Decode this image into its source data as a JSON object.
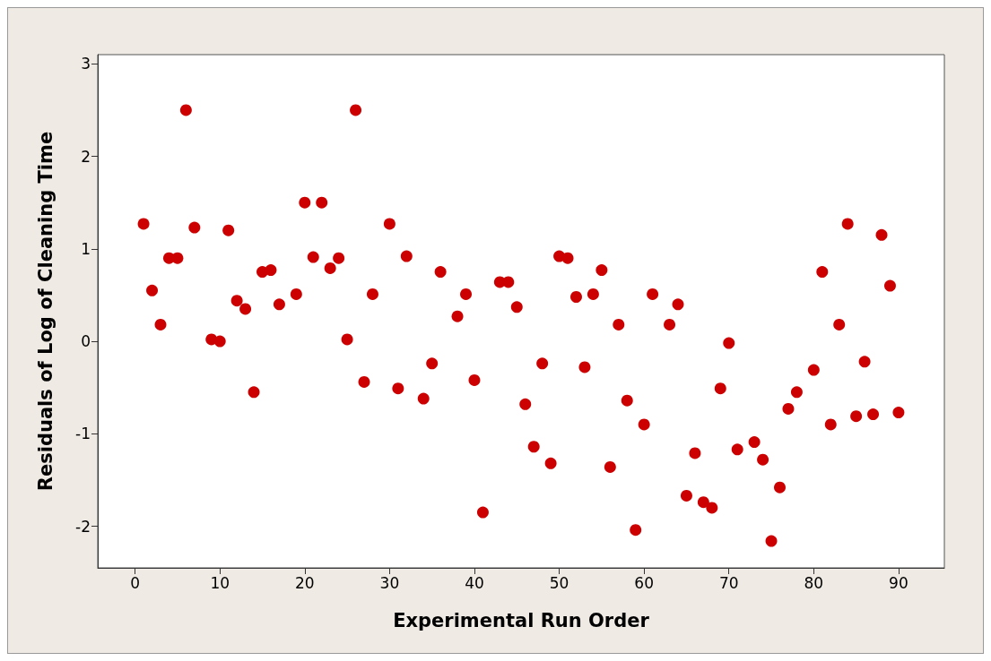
{
  "chart_data": {
    "type": "scatter",
    "xlabel": "Experimental Run Order",
    "ylabel": "Residuals of Log of Cleaning Time",
    "x": [
      1,
      2,
      3,
      4,
      5,
      6,
      7,
      9,
      10,
      11,
      12,
      13,
      14,
      15,
      16,
      17,
      19,
      20,
      21,
      22,
      23,
      24,
      25,
      26,
      27,
      28,
      30,
      31,
      32,
      34,
      35,
      36,
      38,
      39,
      40,
      41,
      43,
      44,
      45,
      46,
      47,
      48,
      49,
      50,
      51,
      52,
      53,
      54,
      55,
      56,
      57,
      58,
      59,
      60,
      61,
      63,
      64,
      65,
      66,
      67,
      68,
      69,
      70,
      71,
      73,
      74,
      75,
      76,
      77,
      78,
      80,
      81,
      82,
      83,
      84,
      85,
      86,
      87,
      88,
      89,
      90
    ],
    "values": [
      1.27,
      0.55,
      0.18,
      0.9,
      0.9,
      2.5,
      1.23,
      0.02,
      0.0,
      1.2,
      0.44,
      0.35,
      -0.55,
      0.75,
      0.77,
      0.4,
      0.51,
      1.5,
      0.91,
      1.5,
      0.79,
      0.9,
      0.02,
      2.5,
      -0.44,
      0.51,
      1.27,
      -0.51,
      0.92,
      -0.62,
      -0.24,
      0.75,
      0.27,
      0.51,
      -0.42,
      -1.85,
      0.64,
      0.64,
      0.37,
      -0.68,
      -1.14,
      -0.24,
      -1.32,
      0.92,
      0.9,
      0.48,
      -0.28,
      0.51,
      0.77,
      -1.36,
      0.18,
      -0.64,
      -2.04,
      -0.9,
      0.51,
      0.18,
      0.4,
      -1.67,
      -1.21,
      -1.74,
      -1.8,
      -0.51,
      -0.02,
      -1.17,
      -1.09,
      -1.28,
      -2.16,
      -1.58,
      -0.73,
      -0.55,
      -0.31,
      0.75,
      -0.9,
      0.18,
      1.27,
      -0.81,
      -0.22,
      -0.79,
      1.15,
      0.6,
      -0.77
    ],
    "color": "#cc0000",
    "marker": "circle",
    "xlim": [
      -4.4,
      95.4
    ],
    "ylim": [
      -2.45,
      3.1
    ],
    "xticks": [
      0,
      10,
      20,
      30,
      40,
      50,
      60,
      70,
      80,
      90
    ],
    "yticks": [
      -2,
      -1,
      0,
      1,
      2,
      3
    ],
    "grid": false
  }
}
